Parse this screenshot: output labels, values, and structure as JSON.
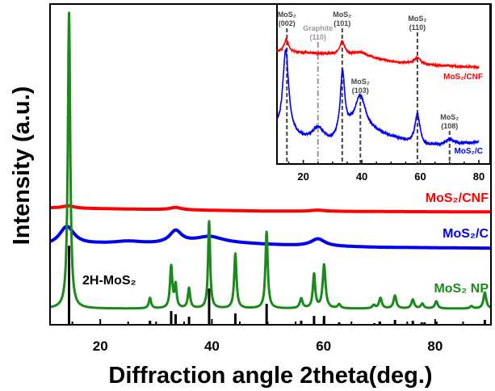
{
  "chart_data": {
    "type": "line",
    "xlabel": "Diffraction angle 2theta(deg.)",
    "ylabel": "Intensity (a.u.)",
    "xlim": [
      11,
      90
    ],
    "ylim": [
      -20,
      378
    ],
    "xticks": [
      20,
      40,
      60,
      80
    ],
    "grid": false,
    "series": [
      {
        "name": "MoS₂/CNF",
        "color": "#ff0000",
        "baseline": [
          [
            11,
            125
          ],
          [
            30,
            123
          ],
          [
            50,
            121
          ],
          [
            90,
            120
          ]
        ],
        "peaks": [
          [
            14.3,
            3,
            1.2
          ],
          [
            33.5,
            3,
            1.2
          ],
          [
            59,
            1.5,
            1.5
          ]
        ]
      },
      {
        "name": "MoS₂/C",
        "color": "#0000ee",
        "baseline": [
          [
            11,
            78
          ],
          [
            20,
            80
          ],
          [
            30,
            80
          ],
          [
            40,
            82
          ],
          [
            55,
            78
          ],
          [
            70,
            76
          ],
          [
            90,
            75
          ]
        ],
        "peaks": [
          [
            14,
            23,
            1.6
          ],
          [
            25,
            3,
            3
          ],
          [
            33.5,
            15,
            1.3
          ],
          [
            39.5,
            7,
            3
          ],
          [
            59,
            9,
            1.5
          ]
        ]
      },
      {
        "name": "MoS₂ NP",
        "color": "#1a8a1a",
        "baseline": [
          [
            11,
            0
          ],
          [
            90,
            0
          ]
        ],
        "peaks": [
          [
            14.4,
            367,
            0.25
          ],
          [
            28.9,
            13,
            0.25
          ],
          [
            32.7,
            52,
            0.25
          ],
          [
            33.5,
            28,
            0.22
          ],
          [
            35.9,
            25,
            0.25
          ],
          [
            39.5,
            108,
            0.22
          ],
          [
            44.2,
            68,
            0.25
          ],
          [
            49.8,
            95,
            0.25
          ],
          [
            56.0,
            12,
            0.3
          ],
          [
            58.3,
            42,
            0.25
          ],
          [
            60.1,
            54,
            0.3
          ],
          [
            62.8,
            5,
            0.3
          ],
          [
            69.0,
            4,
            0.3
          ],
          [
            70.2,
            13,
            0.3
          ],
          [
            72.8,
            16,
            0.3
          ],
          [
            76.0,
            11,
            0.3
          ],
          [
            77.7,
            6,
            0.3
          ],
          [
            80.2,
            9,
            0.3
          ],
          [
            86.5,
            3,
            0.3
          ],
          [
            88.9,
            20,
            0.3
          ]
        ]
      }
    ],
    "reference": {
      "name": "2H-MoS₂",
      "color": "#000000",
      "sticks": [
        [
          14.4,
          98
        ],
        [
          28.9,
          5
        ],
        [
          32.7,
          17
        ],
        [
          33.5,
          13
        ],
        [
          35.9,
          10
        ],
        [
          39.5,
          45
        ],
        [
          44.2,
          14
        ],
        [
          49.8,
          26
        ],
        [
          56.0,
          5
        ],
        [
          58.3,
          11
        ],
        [
          60.1,
          11
        ],
        [
          62.8,
          3
        ],
        [
          69.1,
          2
        ],
        [
          70.1,
          4
        ],
        [
          72.8,
          6
        ],
        [
          76.0,
          5
        ],
        [
          77.6,
          3
        ],
        [
          78.1,
          3
        ],
        [
          80.2,
          4
        ],
        [
          88.9,
          6
        ]
      ]
    },
    "inset": {
      "xlim": [
        11,
        80
      ],
      "ylim": [
        0,
        200
      ],
      "xticks": [
        20,
        40,
        60,
        80
      ],
      "series": [
        {
          "name": "MoS₂/CNF",
          "color": "#ff0000",
          "baseline": [
            [
              11,
              140
            ],
            [
              20,
              139
            ],
            [
              30,
              137
            ],
            [
              40,
              135
            ],
            [
              50,
              128
            ],
            [
              60,
              124
            ],
            [
              80,
              121
            ]
          ],
          "peaks": [
            [
              14.2,
              16,
              0.9
            ],
            [
              33.3,
              16,
              1.0
            ],
            [
              39.5,
              4,
              3
            ],
            [
              59,
              9,
              1.3
            ]
          ]
        },
        {
          "name": "MoS₂/C",
          "color": "#0000ee",
          "baseline": [
            [
              11,
              40
            ],
            [
              20,
              30
            ],
            [
              30,
              26
            ],
            [
              36,
              40
            ],
            [
              45,
              38
            ],
            [
              55,
              28
            ],
            [
              62,
              22
            ],
            [
              80,
              27
            ]
          ],
          "peaks": [
            [
              14,
              105,
              1.2
            ],
            [
              25,
              16,
              2.2
            ],
            [
              33.4,
              78,
              0.9
            ],
            [
              39.5,
              45,
              2.2
            ],
            [
              59,
              38,
              1.0
            ],
            [
              70,
              6,
              1.5
            ]
          ]
        }
      ],
      "markers": [
        {
          "x": 14.4,
          "phase": "MoS₂",
          "hkl": "(002)",
          "style": "dashed",
          "color": "#444444"
        },
        {
          "x": 25,
          "phase": "Graphite",
          "hkl": "(110)",
          "style": "dash-dot",
          "color": "#999999"
        },
        {
          "x": 33.3,
          "phase": "MoS₂",
          "hkl": "(101)",
          "style": "dashed",
          "color": "#444444"
        },
        {
          "x": 39.5,
          "phase": "MoS₂",
          "hkl": "(103)",
          "style": "dashed",
          "color": "#444444"
        },
        {
          "x": 59,
          "phase": "MoS₂",
          "hkl": "(110)",
          "style": "dashed",
          "color": "#444444"
        },
        {
          "x": 70,
          "phase": "MoS₂",
          "hkl": "(108)",
          "style": "dashed",
          "color": "#444444"
        }
      ]
    }
  }
}
